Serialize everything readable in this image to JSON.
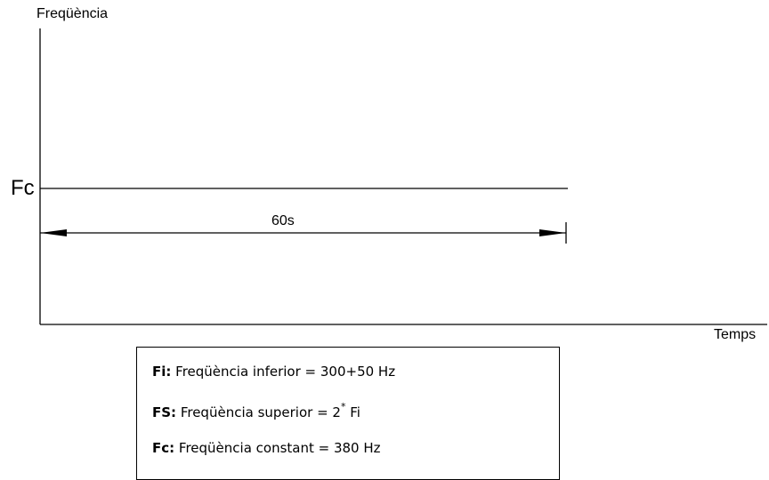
{
  "axes": {
    "y_label": "Freqüència",
    "x_label": "Temps"
  },
  "signal": {
    "level_label": "Fc",
    "duration_label": "60s"
  },
  "legend": {
    "rows": [
      {
        "term": "Fi:",
        "text": " Freqüència inferior = 300+50 Hz"
      },
      {
        "term": "FS:",
        "text": " Freqüència superior = 2",
        "sup": "*",
        "after": " Fi"
      },
      {
        "term": "Fc:",
        "text": " Freqüència constant = 380 Hz"
      }
    ]
  },
  "colors": {
    "line": "#000000",
    "background": "#ffffff"
  }
}
